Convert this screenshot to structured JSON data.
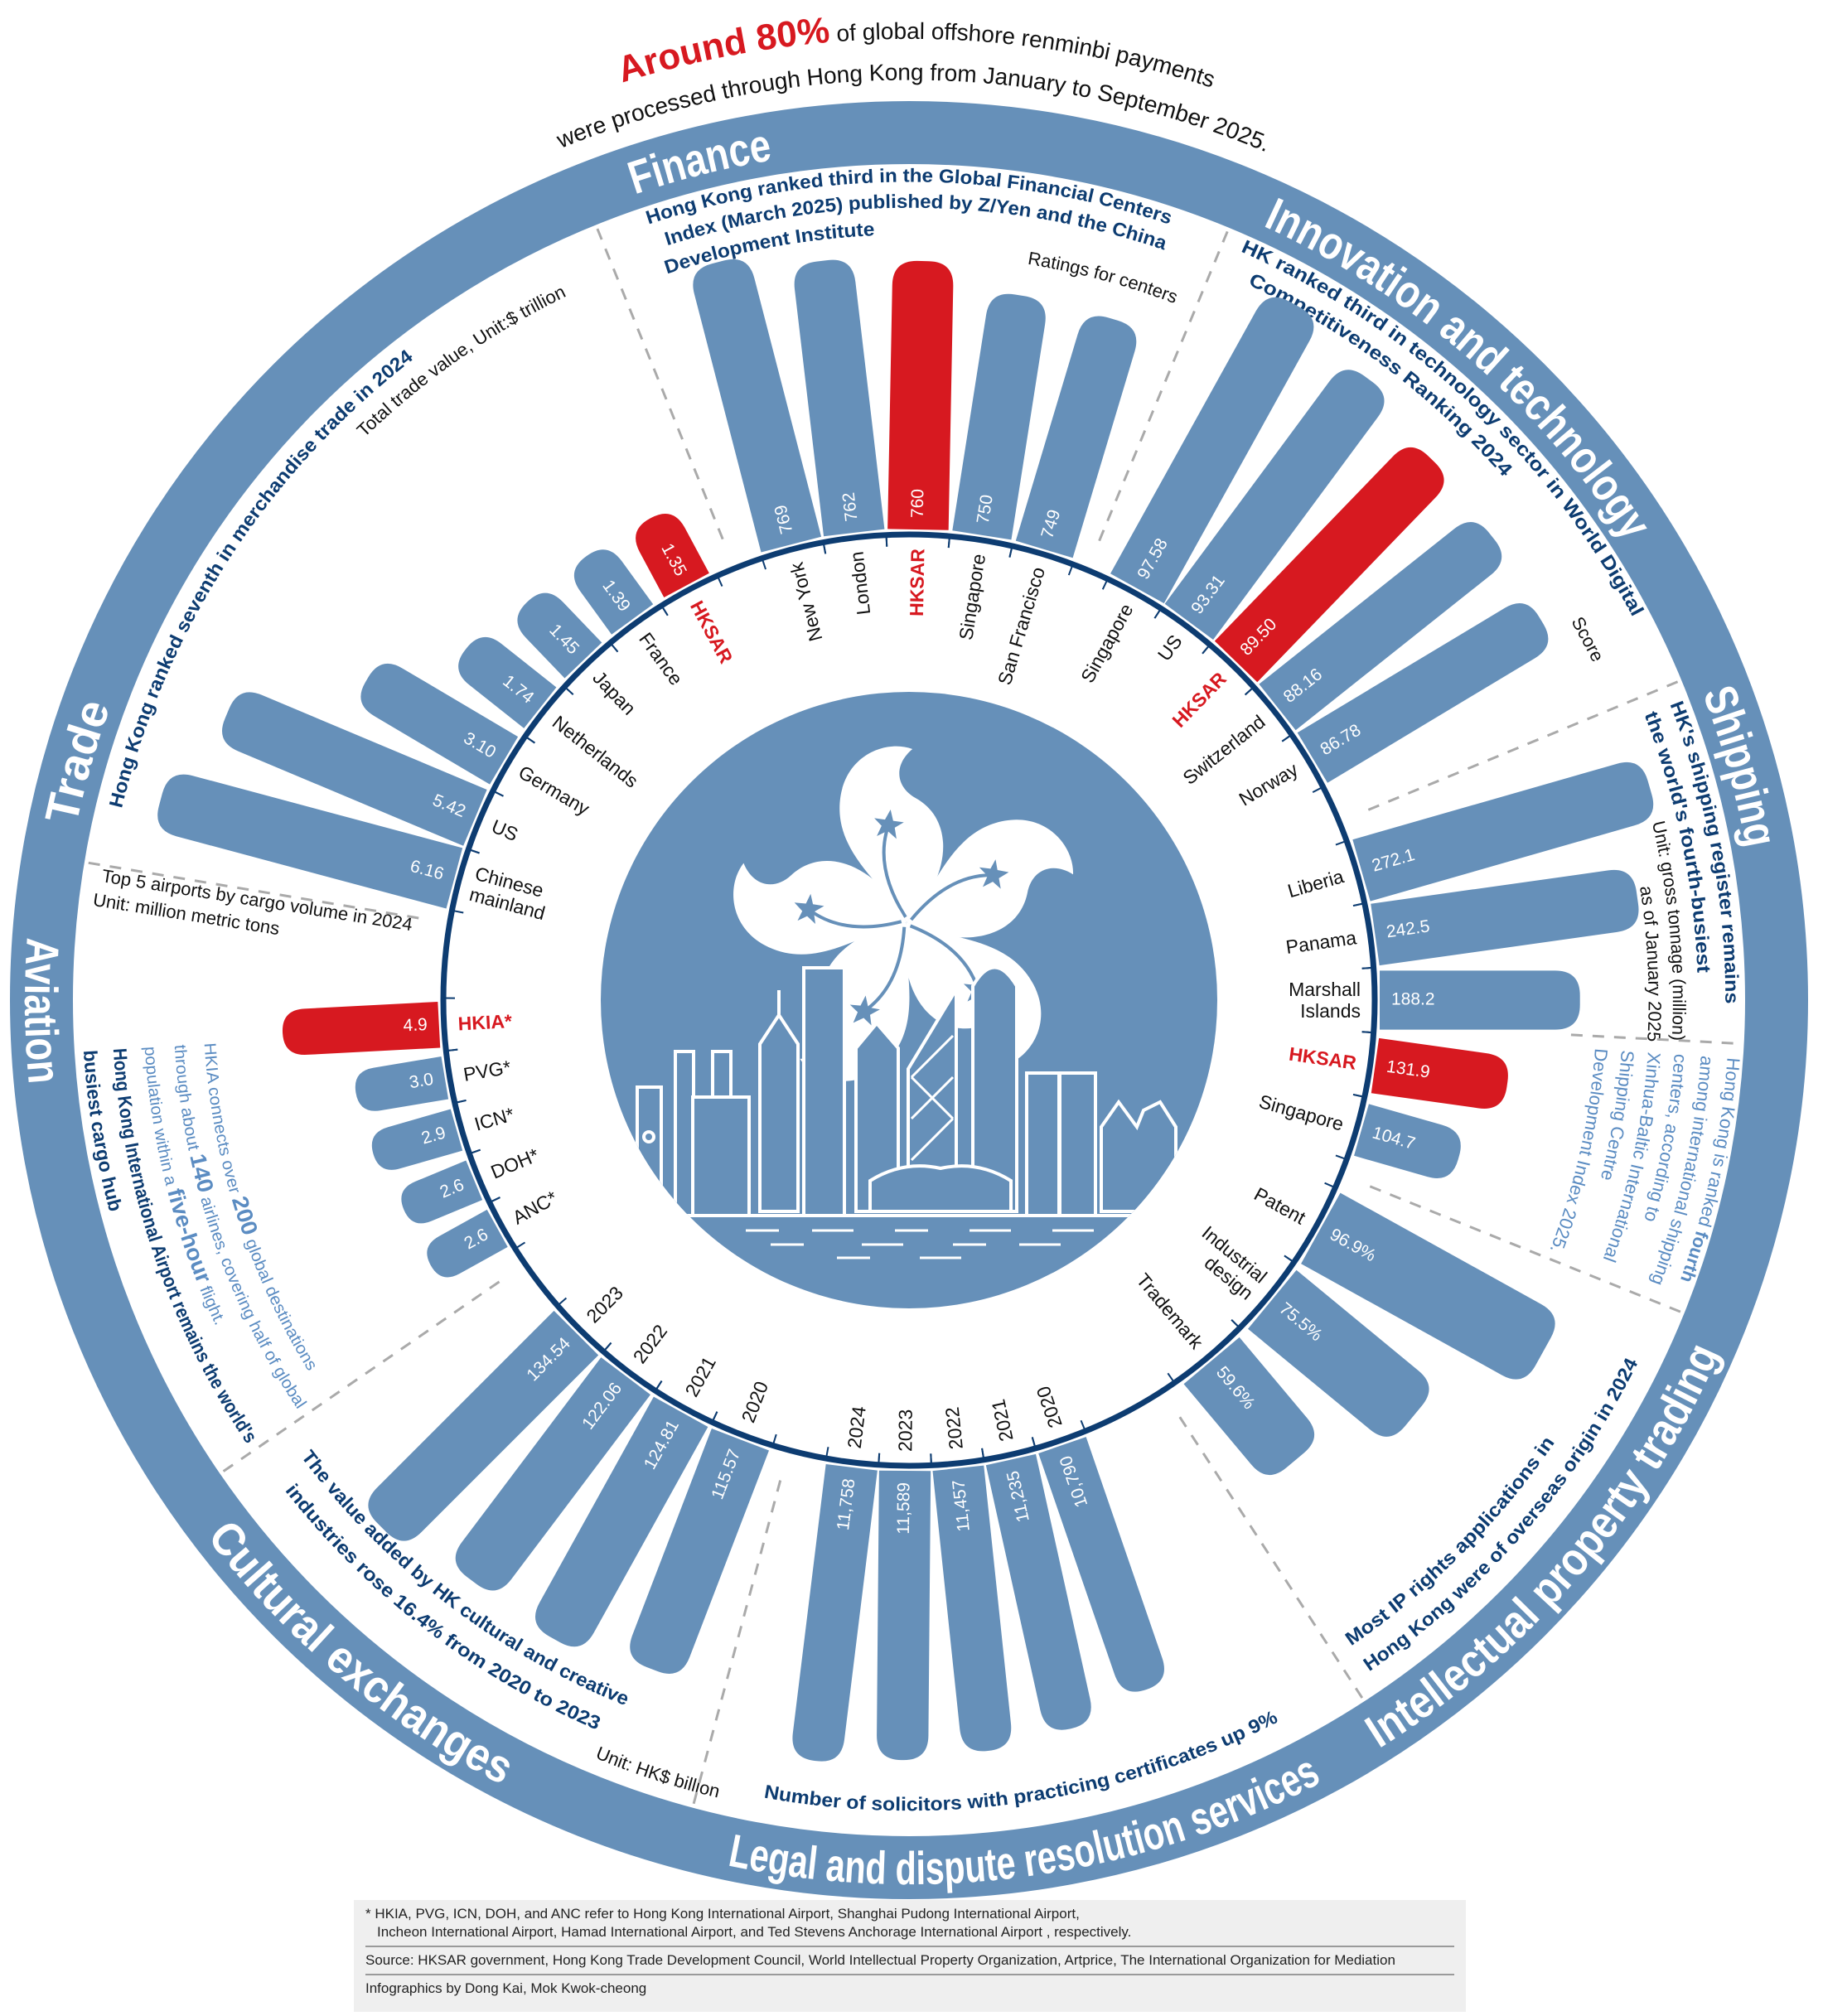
{
  "headline": {
    "highlight": "Around 80%",
    "line1_rest": " of global offshore renminbi payments",
    "line2": "were processed through Hong Kong from January to September 2025."
  },
  "colors": {
    "ring": "#6690b9",
    "bar": "#6690b9",
    "highlight": "#d71920",
    "navy": "#0d3c71",
    "note": "#5b8cc2",
    "footer_bg": "#efefef"
  },
  "sections": {
    "finance": {
      "title": "Finance",
      "subtitle": [
        "Hong Kong ranked third in the Global Financial Centers",
        "Index (March 2025) published by Z/Yen and the China",
        "Development Institute"
      ],
      "note": "Ratings for centers"
    },
    "innovation": {
      "title": "Innovation and technology",
      "subtitle": [
        "HK ranked third in technology sector in World Digital",
        "Competitiveness Ranking 2024"
      ],
      "note": "Score"
    },
    "shipping": {
      "title": "Shipping",
      "subtitle": [
        "HK's shipping register remains",
        "the world's fourth-busiest"
      ],
      "unit": [
        "Unit: gross tonnage (million)",
        "as of January 2025"
      ],
      "note": [
        [
          "Hong Kong is ranked ",
          "fourth"
        ],
        [
          "among international shipping"
        ],
        [
          "centers, according to"
        ],
        [
          "Xinhua-Baltic International"
        ],
        [
          "Shipping Centre"
        ],
        [
          "Development Index 2025."
        ]
      ]
    },
    "ip": {
      "title": "Intellectual property trading",
      "subtitle": [
        "Most IP rights applications in",
        "Hong Kong were of overseas origin in 2024"
      ]
    },
    "legal": {
      "title": "Legal and dispute resolution services",
      "subtitle": "Number of solicitors with practicing certificates up 9%"
    },
    "cultural": {
      "title": "Cultural exchanges",
      "subtitle": [
        "The value added by HK cultural and creative",
        "industries rose 16.4% from 2020 to 2023"
      ],
      "unit": "Unit: HK$ billion"
    },
    "aviation": {
      "title": "Aviation",
      "caption": "Top 5 airports by cargo volume in 2024",
      "unit": "Unit: million metric tons",
      "note": [
        [
          "HKIA connects over ",
          "200",
          " global destinations"
        ],
        [
          "through about ",
          "140",
          " airlines, covering half of global"
        ],
        [
          "population within a ",
          "five-hour",
          " flight."
        ]
      ],
      "headline": [
        "Hong Kong International Airport remains the world's",
        "busiest cargo hub"
      ]
    },
    "trade": {
      "title": "Trade",
      "subtitle": "Hong Kong ranked seventh in merchandise trade in 2024",
      "unit": "Total trade value, Unit:$ trillion"
    }
  },
  "chart_data": [
    {
      "section": "finance",
      "type": "bar",
      "layout": "radial",
      "categories": [
        "New York",
        "London",
        "HKSAR",
        "Singapore",
        "San Francisco"
      ],
      "values": [
        769,
        762,
        760,
        750,
        749
      ],
      "value_labels": [
        "769",
        "762",
        "760",
        "750",
        "749"
      ],
      "highlight": "HKSAR"
    },
    {
      "section": "innovation",
      "type": "bar",
      "layout": "radial",
      "categories": [
        "Singapore",
        "US",
        "HKSAR",
        "Switzerland",
        "Norway"
      ],
      "values": [
        97.58,
        93.31,
        89.5,
        88.16,
        86.78
      ],
      "value_labels": [
        "97.58",
        "93.31",
        "89.50",
        "88.16",
        "86.78"
      ],
      "highlight": "HKSAR"
    },
    {
      "section": "shipping",
      "type": "bar",
      "layout": "radial",
      "categories": [
        "Liberia",
        "Panama",
        "Marshall\nIslands",
        "HKSAR",
        "Singapore"
      ],
      "values": [
        272.1,
        242.5,
        188.2,
        131.9,
        104.7
      ],
      "value_labels": [
        "272.1",
        "242.5",
        "188.2",
        "131.9",
        "104.7"
      ],
      "highlight": "HKSAR"
    },
    {
      "section": "ip",
      "type": "bar",
      "layout": "radial",
      "categories": [
        "Patent",
        "Industrial\ndesign",
        "Trademark"
      ],
      "values": [
        96.9,
        75.5,
        59.6
      ],
      "value_labels": [
        "96.9%",
        "75.5%",
        "59.6%"
      ],
      "highlight": null
    },
    {
      "section": "legal",
      "type": "bar",
      "layout": "radial",
      "categories": [
        "2024",
        "2023",
        "2022",
        "2021",
        "2020"
      ],
      "values": [
        11758,
        11589,
        11457,
        11235,
        10790
      ],
      "value_labels": [
        "11,758",
        "11,589",
        "11,457",
        "11,235",
        "10,790"
      ],
      "highlight": null
    },
    {
      "section": "cultural",
      "type": "bar",
      "layout": "radial",
      "categories": [
        "2023",
        "2022",
        "2021",
        "2020"
      ],
      "values": [
        134.54,
        122.06,
        124.81,
        115.57
      ],
      "value_labels": [
        "134.54",
        "122.06",
        "124.81",
        "115.57"
      ],
      "highlight": null
    },
    {
      "section": "aviation",
      "type": "bar",
      "layout": "radial",
      "categories": [
        "HKIA*",
        "PVG*",
        "ICN*",
        "DOH*",
        "ANC*"
      ],
      "values": [
        4.9,
        3.0,
        2.9,
        2.6,
        2.6
      ],
      "value_labels": [
        "4.9",
        "3.0",
        "2.9",
        "2.6",
        "2.6"
      ],
      "highlight": "HKIA*"
    },
    {
      "section": "trade",
      "type": "bar",
      "layout": "radial",
      "categories": [
        "Chinese\nmainland",
        "US",
        "Germany",
        "Netherlands",
        "Japan",
        "France",
        "HKSAR"
      ],
      "values": [
        6.16,
        5.42,
        3.1,
        1.74,
        1.45,
        1.39,
        1.35
      ],
      "value_labels": [
        "6.16",
        "5.42",
        "3.10",
        "1.74",
        "1.45",
        "1.39",
        "1.35"
      ],
      "highlight": "HKSAR"
    }
  ],
  "footer": {
    "footnote_1": "*  HKIA, PVG, ICN, DOH, and ANC refer to Hong Kong International Airport, Shanghai Pudong International Airport,",
    "footnote_2": "Incheon International Airport, Hamad International Airport, and Ted Stevens Anchorage International Airport , respectively.",
    "source": "Source:  HKSAR government, Hong Kong Trade Development Council, World Intellectual Property Organization, Artprice, The International Organization for Mediation",
    "credits": "Infographics by Dong Kai, Mok Kwok-cheong"
  }
}
